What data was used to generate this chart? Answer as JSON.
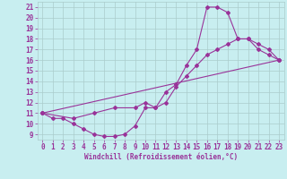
{
  "xlabel": "Windchill (Refroidissement éolien,°C)",
  "background_color": "#c8eef0",
  "line_color": "#993399",
  "grid_color": "#aacccc",
  "xlim": [
    -0.5,
    23.5
  ],
  "ylim": [
    8.5,
    21.5
  ],
  "xticks": [
    0,
    1,
    2,
    3,
    4,
    5,
    6,
    7,
    8,
    9,
    10,
    11,
    12,
    13,
    14,
    15,
    16,
    17,
    18,
    19,
    20,
    21,
    22,
    23
  ],
  "yticks": [
    9,
    10,
    11,
    12,
    13,
    14,
    15,
    16,
    17,
    18,
    19,
    20,
    21
  ],
  "line1_x": [
    0,
    1,
    2,
    3,
    4,
    5,
    6,
    7,
    8,
    9,
    10,
    11,
    12,
    13,
    14,
    15,
    16,
    17,
    18,
    19,
    20,
    21,
    22,
    23
  ],
  "line1_y": [
    11.0,
    10.5,
    10.5,
    10.0,
    9.5,
    9.0,
    8.8,
    8.8,
    9.0,
    9.8,
    11.5,
    11.5,
    13.0,
    13.7,
    15.5,
    17.0,
    21.0,
    21.0,
    20.5,
    18.0,
    18.0,
    17.0,
    16.5,
    16.0
  ],
  "line2_x": [
    0,
    3,
    5,
    7,
    9,
    10,
    11,
    12,
    13,
    14,
    15,
    16,
    17,
    18,
    19,
    20,
    21,
    22,
    23
  ],
  "line2_y": [
    11.0,
    10.5,
    11.0,
    11.5,
    11.5,
    12.0,
    11.5,
    12.0,
    13.5,
    14.5,
    15.5,
    16.5,
    17.0,
    17.5,
    18.0,
    18.0,
    17.5,
    17.0,
    16.0
  ],
  "line3_x": [
    0,
    23
  ],
  "line3_y": [
    11.0,
    16.0
  ],
  "tick_fontsize": 5.5,
  "xlabel_fontsize": 5.5,
  "marker_size": 2.0,
  "line_width": 0.8
}
